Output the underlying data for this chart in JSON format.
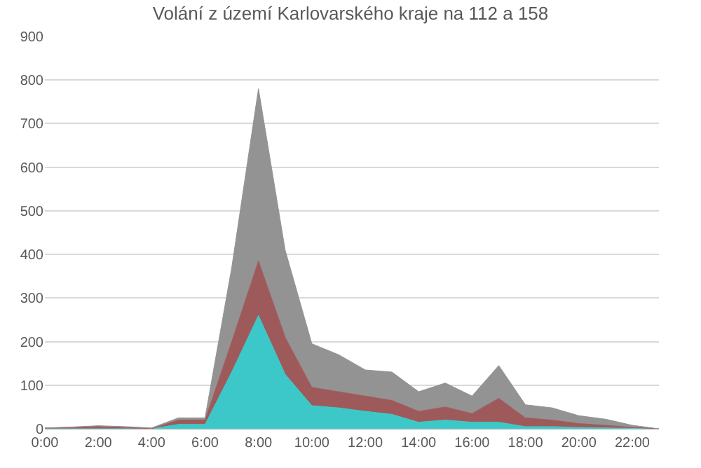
{
  "chart_data": {
    "type": "area",
    "stacked": true,
    "title": "Volání z území Karlovarského kraje na 112 a 158",
    "x": [
      0,
      1,
      2,
      3,
      4,
      5,
      6,
      7,
      8,
      9,
      10,
      11,
      12,
      13,
      14,
      15,
      16,
      17,
      18,
      19,
      20,
      21,
      22,
      23
    ],
    "series": [
      {
        "color": "#3cc8c8",
        "values": [
          0,
          0,
          0,
          0,
          0,
          10,
          10,
          130,
          260,
          125,
          53,
          48,
          40,
          33,
          15,
          20,
          15,
          15,
          5,
          5,
          3,
          2,
          1,
          0
        ]
      },
      {
        "color": "#9e5a5a",
        "values": [
          2,
          3,
          5,
          3,
          0,
          10,
          10,
          70,
          125,
          85,
          42,
          37,
          35,
          32,
          25,
          30,
          20,
          55,
          20,
          15,
          9,
          6,
          2,
          0
        ]
      },
      {
        "color": "#939393",
        "values": [
          0,
          1,
          2,
          2,
          2,
          5,
          5,
          170,
          395,
          200,
          100,
          85,
          60,
          65,
          45,
          55,
          40,
          75,
          30,
          28,
          18,
          14,
          5,
          0
        ]
      }
    ],
    "xlim": [
      0,
      23
    ],
    "xticks": [
      {
        "value": 0,
        "label": "0:00"
      },
      {
        "value": 2,
        "label": "2:00"
      },
      {
        "value": 4,
        "label": "4:00"
      },
      {
        "value": 6,
        "label": "6:00"
      },
      {
        "value": 8,
        "label": "8:00"
      },
      {
        "value": 10,
        "label": "10:00"
      },
      {
        "value": 12,
        "label": "12:00"
      },
      {
        "value": 14,
        "label": "14:00"
      },
      {
        "value": 16,
        "label": "16:00"
      },
      {
        "value": 18,
        "label": "18:00"
      },
      {
        "value": 20,
        "label": "20:00"
      },
      {
        "value": 22,
        "label": "22:00"
      }
    ],
    "ylim": [
      0,
      900
    ],
    "yticks": [
      0,
      100,
      200,
      300,
      400,
      500,
      600,
      700,
      800,
      900
    ],
    "grid": "y"
  }
}
